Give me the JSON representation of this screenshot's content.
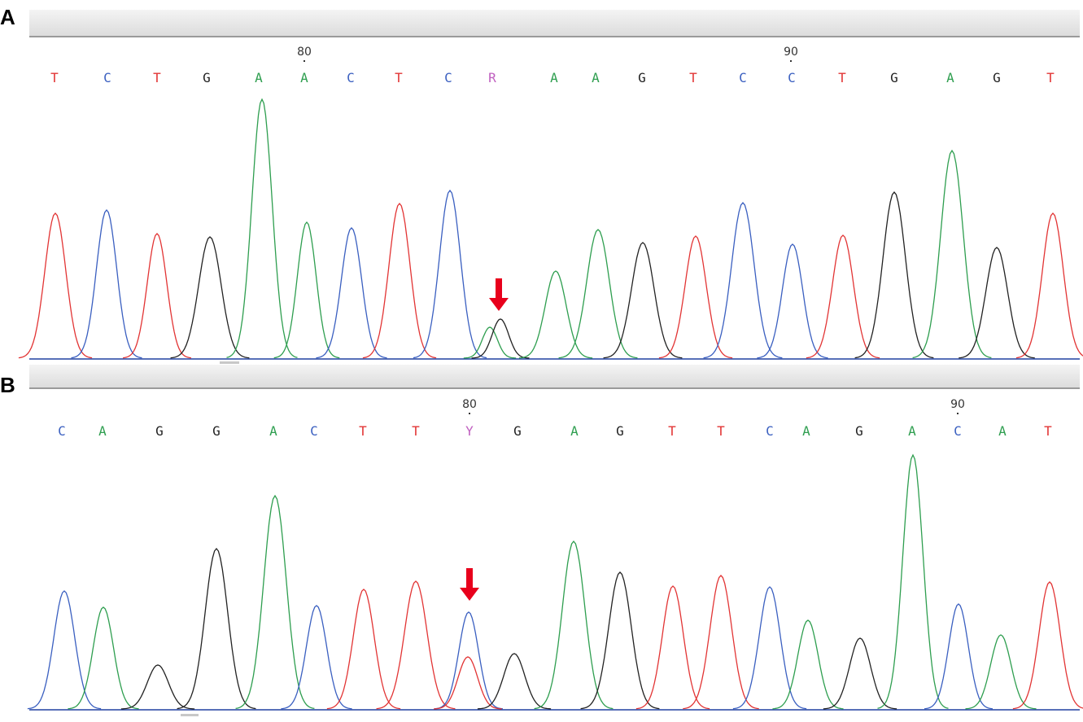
{
  "panels": [
    {
      "label": "A",
      "positions": [
        "80",
        "90"
      ],
      "bases": [
        "T",
        "C",
        "T",
        "G",
        "A",
        "A",
        "C",
        "T",
        "C",
        "R",
        "A",
        "A",
        "G",
        "T",
        "C",
        "C",
        "T",
        "G",
        "A",
        "G",
        "T"
      ],
      "marker": "down-arrow"
    },
    {
      "label": "B",
      "positions": [
        "80",
        "90"
      ],
      "bases": [
        "C",
        "A",
        "G",
        "G",
        "A",
        "C",
        "T",
        "T",
        "Y",
        "G",
        "A",
        "G",
        "T",
        "T",
        "C",
        "A",
        "G",
        "A",
        "C",
        "A",
        "T"
      ],
      "marker": "down-arrow"
    }
  ],
  "colors": {
    "A": "#2e9e4f",
    "C": "#3a5fc0",
    "G": "#222222",
    "T": "#e23434",
    "R": "#c060c0",
    "Y": "#c060c0",
    "arrow": "#e8001c",
    "baseline": "#2040a0"
  }
}
